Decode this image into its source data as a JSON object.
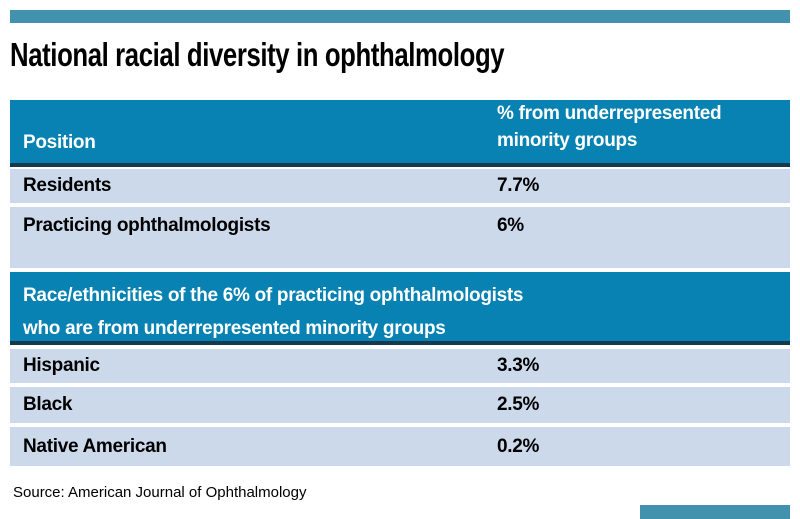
{
  "title": "National racial diversity in ophthalmology",
  "colors": {
    "accent_bar": "#4292ae",
    "header_teal": "#0882b2",
    "row_blue": "#ccd9eb",
    "divider_dark": "#16394d"
  },
  "table": {
    "header": {
      "col1": "Position",
      "col2_line1": "% from underrepresented",
      "col2_line2": "minority groups"
    },
    "position_rows": [
      {
        "label": "Residents",
        "value": "7.7%"
      },
      {
        "label": "Practicing ophthalmologists",
        "value": "6%"
      }
    ],
    "section_header": {
      "line1": "Race/ethnicities of the 6% of practicing ophthalmologists",
      "line2": "who are from underrepresented minority groups"
    },
    "ethnicity_rows": [
      {
        "label": "Hispanic",
        "value": "3.3%"
      },
      {
        "label": "Black",
        "value": "2.5%"
      },
      {
        "label": "Native American",
        "value": "0.2%"
      }
    ]
  },
  "source": "Source: American Journal of Ophthalmology",
  "chart_data": {
    "type": "table",
    "title": "National racial diversity in ophthalmology",
    "sections": [
      {
        "columns": [
          "Position",
          "% from underrepresented minority groups"
        ],
        "rows": [
          [
            "Residents",
            7.7
          ],
          [
            "Practicing ophthalmologists",
            6
          ]
        ],
        "unit": "percent"
      },
      {
        "section_title": "Race/ethnicities of the 6% of practicing ophthalmologists who are from underrepresented minority groups",
        "rows": [
          [
            "Hispanic",
            3.3
          ],
          [
            "Black",
            2.5
          ],
          [
            "Native American",
            0.2
          ]
        ],
        "unit": "percent"
      }
    ],
    "source": "American Journal of Ophthalmology"
  }
}
